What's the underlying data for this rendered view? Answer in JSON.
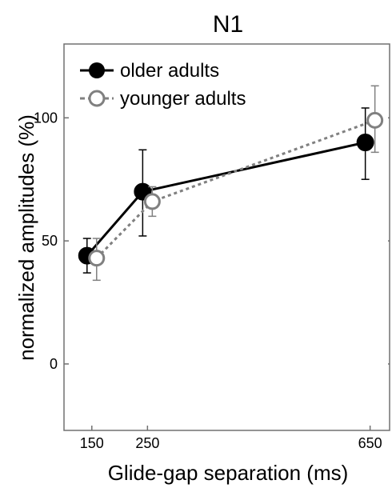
{
  "chart_data": {
    "type": "line",
    "title": "N1",
    "xlabel": "Glide-gap separation (ms)",
    "ylabel": "normalized amplitudes (%)",
    "xticks": [
      150,
      250,
      650
    ],
    "yticks": [
      0,
      50,
      100
    ],
    "xlim": [
      100,
      685
    ],
    "ylim": [
      -27,
      130
    ],
    "grid": false,
    "legend_position": "top-left",
    "series": [
      {
        "name": "older adults",
        "color": "#000000",
        "line_style": "solid",
        "marker": "filled-circle",
        "x": [
          150,
          250,
          650
        ],
        "y": [
          44,
          70,
          90
        ],
        "err_low": [
          37,
          52,
          75
        ],
        "err_high": [
          51,
          87,
          104
        ]
      },
      {
        "name": "younger adults",
        "color": "#808080",
        "line_style": "dotted",
        "marker": "open-circle",
        "x": [
          150,
          250,
          650
        ],
        "y": [
          43,
          66,
          99
        ],
        "err_low": [
          34,
          60,
          86
        ],
        "err_high": [
          51,
          72,
          113
        ]
      }
    ]
  }
}
